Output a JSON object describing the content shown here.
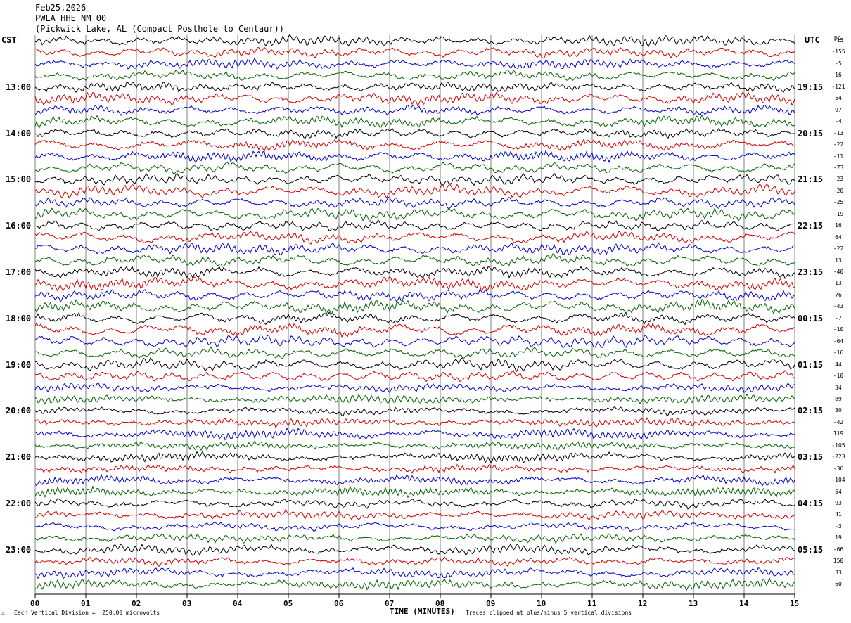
{
  "header": {
    "date": "Feb25,2026",
    "station": "PWLA HHE NM 00",
    "location": "(Pickwick Lake, AL (Compact Posthole to Centaur))"
  },
  "corner": {
    "left": "CST",
    "right": "UTC",
    "dc": "DC"
  },
  "footer": {
    "vertical_division": "Each Vertical Division =  250.00 microvolts",
    "xlabel": "TIME (MINUTES)",
    "clip_note": "Traces clipped at plus/minus 5 vertical divisions"
  },
  "colors": {
    "trace_cycle": [
      "#000000",
      "#d40000",
      "#0000cc",
      "#006400"
    ],
    "grid": "#808080"
  },
  "chart_data": {
    "type": "line",
    "title": "PWLA HHE NM 00",
    "xlabel": "TIME (MINUTES)",
    "xlim": [
      0,
      15
    ],
    "x_ticks": [
      "00",
      "01",
      "02",
      "03",
      "04",
      "05",
      "06",
      "07",
      "08",
      "09",
      "10",
      "11",
      "12",
      "13",
      "14",
      "15"
    ],
    "rows_per_hour": 4,
    "row_count": 48,
    "left_time_labels": [
      "13:00",
      "14:00",
      "15:00",
      "16:00",
      "17:00",
      "18:00",
      "19:00",
      "20:00",
      "21:00",
      "22:00",
      "23:00"
    ],
    "right_time_labels": [
      "19:15",
      "20:15",
      "21:15",
      "22:15",
      "23:15",
      "00:15",
      "01:15",
      "02:15",
      "03:15",
      "04:15",
      "05:15"
    ],
    "dc_offsets": [
      "-15",
      "-155",
      "-5",
      "16",
      "-121",
      "54",
      "97",
      "-4",
      "-13",
      "-22",
      "-11",
      "-73",
      "-23",
      "-20",
      "-25",
      "-19",
      "16",
      "64",
      "-22",
      "13",
      "-40",
      "13",
      "76",
      "-43",
      "-7",
      "-10",
      "-64",
      "-16",
      "44",
      "-10",
      "34",
      "89",
      "30",
      "-42",
      "119",
      "-105",
      "-223",
      "-36",
      "-104",
      "54",
      "93",
      "41",
      "-3",
      "19",
      "-66",
      "150",
      "33",
      "60"
    ]
  }
}
